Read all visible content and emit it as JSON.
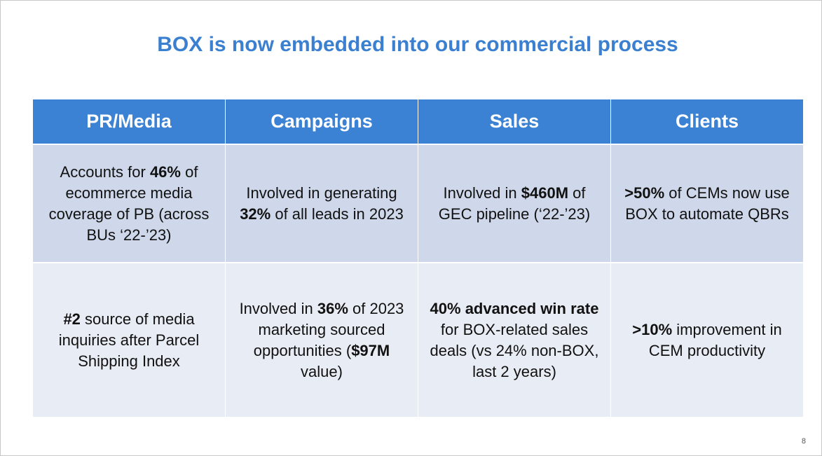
{
  "title": "BOX is now embedded into our commercial process",
  "page_number": "8",
  "headers": [
    "PR/Media",
    "Campaigns",
    "Sales",
    "Clients"
  ],
  "rows": [
    [
      {
        "segments": [
          {
            "text": "Accounts for ",
            "bold": false
          },
          {
            "text": "46%",
            "bold": true
          },
          {
            "text": " of ecommerce media coverage of PB (across BUs ‘22-’23)",
            "bold": false
          }
        ]
      },
      {
        "segments": [
          {
            "text": "Involved in generating ",
            "bold": false
          },
          {
            "text": "32%",
            "bold": true
          },
          {
            "text": " of all leads in 2023",
            "bold": false
          }
        ]
      },
      {
        "segments": [
          {
            "text": "Involved in ",
            "bold": false
          },
          {
            "text": "$460M",
            "bold": true
          },
          {
            "text": " of GEC pipeline (‘22-’23)",
            "bold": false
          }
        ]
      },
      {
        "segments": [
          {
            "text": ">50%",
            "bold": true
          },
          {
            "text": " of CEMs now use BOX to automate QBRs",
            "bold": false
          }
        ]
      }
    ],
    [
      {
        "segments": [
          {
            "text": "#2",
            "bold": true
          },
          {
            "text": " source of media inquiries after Parcel Shipping Index",
            "bold": false
          }
        ]
      },
      {
        "segments": [
          {
            "text": "Involved in ",
            "bold": false
          },
          {
            "text": "36%",
            "bold": true
          },
          {
            "text": " of 2023 marketing sourced opportunities (",
            "bold": false
          },
          {
            "text": "$97M",
            "bold": true
          },
          {
            "text": " value)",
            "bold": false
          }
        ]
      },
      {
        "segments": [
          {
            "text": "40% advanced win rate",
            "bold": true
          },
          {
            "text": " for BOX-related sales deals (vs 24% non-BOX, last 2 years)",
            "bold": false
          }
        ]
      },
      {
        "segments": [
          {
            "text": ">10%",
            "bold": true
          },
          {
            "text": " improvement in CEM productivity",
            "bold": false
          }
        ]
      }
    ]
  ],
  "colors": {
    "title": "#3b7fd1",
    "header_bg": "#3b81d4",
    "row1_bg": "#cfd8ea",
    "row2_bg": "#e8ecf4"
  }
}
